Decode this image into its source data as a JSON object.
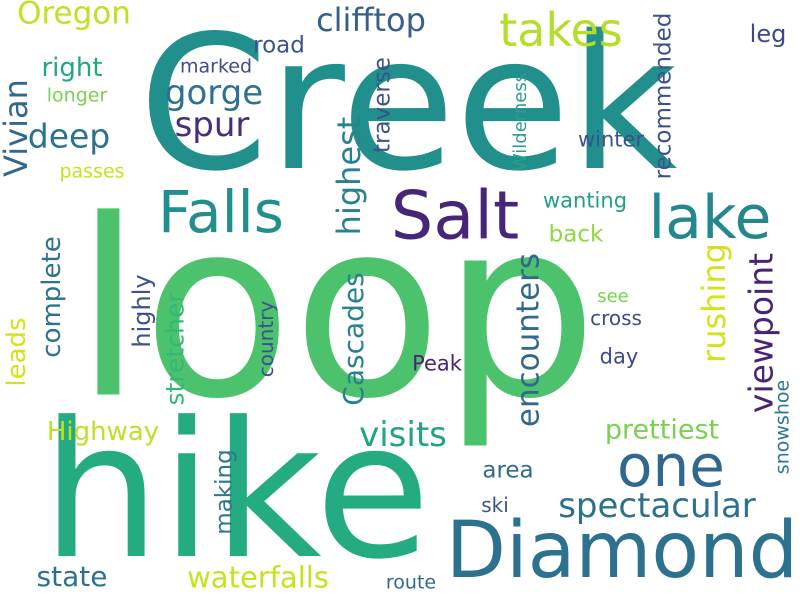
{
  "palette": {
    "dark_purple": "#482677",
    "slate_blue": "#3b528b",
    "teal_blue": "#2c728e",
    "teal": "#21908c",
    "green_teal": "#27ad81",
    "green": "#5dc863",
    "lime": "#b5de2b",
    "yellow": "#d5e21a"
  },
  "words": [
    {
      "key": "creek",
      "text": "Creek",
      "color": "#21908c"
    },
    {
      "key": "loop",
      "text": "loop",
      "color": "#4cc26c"
    },
    {
      "key": "hike",
      "text": "hike",
      "color": "#25ab82"
    },
    {
      "key": "diamond",
      "text": "Diamond",
      "color": "#2c728e"
    },
    {
      "key": "salt",
      "text": "Salt",
      "color": "#482677"
    },
    {
      "key": "falls",
      "text": "Falls",
      "color": "#21908c"
    },
    {
      "key": "lake",
      "text": "lake",
      "color": "#24878e"
    },
    {
      "key": "one",
      "text": "one",
      "color": "#31688e"
    },
    {
      "key": "takes",
      "text": "takes",
      "color": "#b5de2b"
    },
    {
      "key": "oregon",
      "text": "Oregon",
      "color": "#c2df23"
    },
    {
      "key": "clifftop",
      "text": "clifftop",
      "color": "#355f8d"
    },
    {
      "key": "road",
      "text": "road",
      "color": "#3b528b"
    },
    {
      "key": "right",
      "text": "right",
      "color": "#21a685"
    },
    {
      "key": "marked",
      "text": "marked",
      "color": "#3e4a89"
    },
    {
      "key": "longer",
      "text": "longer",
      "color": "#7ad151"
    },
    {
      "key": "gorge",
      "text": "gorge",
      "color": "#2c728e"
    },
    {
      "key": "spur",
      "text": "spur",
      "color": "#472d7b"
    },
    {
      "key": "deep",
      "text": "deep",
      "color": "#2c728e"
    },
    {
      "key": "vivian",
      "text": "Vivian",
      "color": "#c8e020"
    },
    {
      "key": "passes",
      "text": "passes",
      "color": "#31688e"
    },
    {
      "key": "highest",
      "text": "highest",
      "color": "#26828e"
    },
    {
      "key": "traverse",
      "text": "traverse",
      "color": "#3b528b"
    },
    {
      "key": "wilderness",
      "text": "Wilderness",
      "color": "#2a9d8f"
    },
    {
      "key": "recommended",
      "text": "recommended",
      "color": "#3b528b"
    },
    {
      "key": "leg",
      "text": "leg",
      "color": "#3e4989"
    },
    {
      "key": "winter",
      "text": "winter",
      "color": "#3b528b"
    },
    {
      "key": "wanting",
      "text": "wanting",
      "color": "#1f9e89"
    },
    {
      "key": "back",
      "text": "back",
      "color": "#8fd744"
    },
    {
      "key": "complete",
      "text": "complete",
      "color": "#2c728e"
    },
    {
      "key": "leads",
      "text": "leads",
      "color": "#d5e21a"
    },
    {
      "key": "highly",
      "text": "highly",
      "color": "#3b528b"
    },
    {
      "key": "stretcher",
      "text": "stretcher",
      "color": "#35b779"
    },
    {
      "key": "cascades",
      "text": "Cascades",
      "color": "#26828e"
    },
    {
      "key": "encounters",
      "text": "encounters",
      "color": "#31688e"
    },
    {
      "key": "rushing",
      "text": "rushing",
      "color": "#d5e21a"
    },
    {
      "key": "viewpoint",
      "text": "viewpoint",
      "color": "#482475"
    },
    {
      "key": "see",
      "text": "see",
      "color": "#7ad151"
    },
    {
      "key": "cross",
      "text": "cross",
      "color": "#3e4a89"
    },
    {
      "key": "country",
      "text": "country",
      "color": "#3b528b"
    },
    {
      "key": "peak",
      "text": "Peak",
      "color": "#482677"
    },
    {
      "key": "day",
      "text": "day",
      "color": "#3e4a89"
    },
    {
      "key": "visits",
      "text": "visits",
      "color": "#20a386"
    },
    {
      "key": "highway",
      "text": "Highway",
      "color": "#c0df25"
    },
    {
      "key": "prettiest",
      "text": "prettiest",
      "color": "#7ad151"
    },
    {
      "key": "snowshoe",
      "text": "snowshoe",
      "color": "#2a788e"
    },
    {
      "key": "area",
      "text": "area",
      "color": "#31688e"
    },
    {
      "key": "making",
      "text": "making",
      "color": "#2a788e"
    },
    {
      "key": "spectacular",
      "text": "spectacular",
      "color": "#2c728e"
    },
    {
      "key": "ski",
      "text": "ski",
      "color": "#3b528b"
    },
    {
      "key": "state",
      "text": "state",
      "color": "#2c728e"
    },
    {
      "key": "waterfalls",
      "text": "waterfalls",
      "color": "#c8e020"
    },
    {
      "key": "route",
      "text": "route",
      "color": "#31688e"
    }
  ]
}
